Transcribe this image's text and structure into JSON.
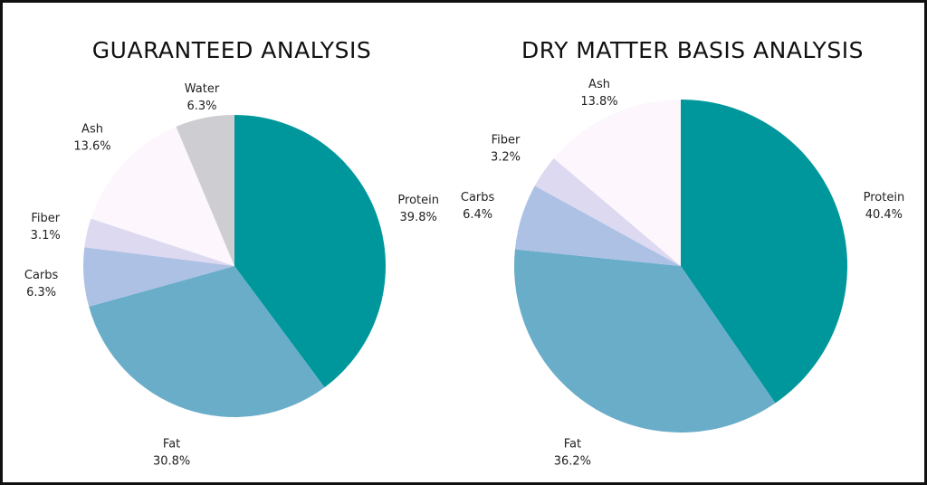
{
  "chart_data": [
    {
      "type": "pie",
      "title": "GUARANTEED ANALYSIS",
      "slices": [
        {
          "name": "Protein",
          "label": "39.8%",
          "value": 39.8,
          "color": "#00979c"
        },
        {
          "name": "Fat",
          "label": "30.8%",
          "value": 30.8,
          "color": "#6aadc9"
        },
        {
          "name": "Carbs",
          "label": "6.3%",
          "value": 6.3,
          "color": "#adc1e5"
        },
        {
          "name": "Fiber",
          "label": "3.1%",
          "value": 3.1,
          "color": "#dcd9f0"
        },
        {
          "name": "Ash",
          "label": "13.6%",
          "value": 13.6,
          "color": "#fdf7fd"
        },
        {
          "name": "Water",
          "label": "6.3%",
          "value": 6.3,
          "color": "#cdcdd2"
        }
      ]
    },
    {
      "type": "pie",
      "title": "DRY MATTER BASIS ANALYSIS",
      "slices": [
        {
          "name": "Protein",
          "label": "40.4%",
          "value": 40.4,
          "color": "#00979c"
        },
        {
          "name": "Fat",
          "label": "36.2%",
          "value": 36.2,
          "color": "#6aadc9"
        },
        {
          "name": "Carbs",
          "label": "6.4%",
          "value": 6.4,
          "color": "#adc1e5"
        },
        {
          "name": "Fiber",
          "label": "3.2%",
          "value": 3.2,
          "color": "#dcd9f0"
        },
        {
          "name": "Ash",
          "label": "13.8%",
          "value": 13.8,
          "color": "#fdf7fd"
        }
      ]
    }
  ]
}
